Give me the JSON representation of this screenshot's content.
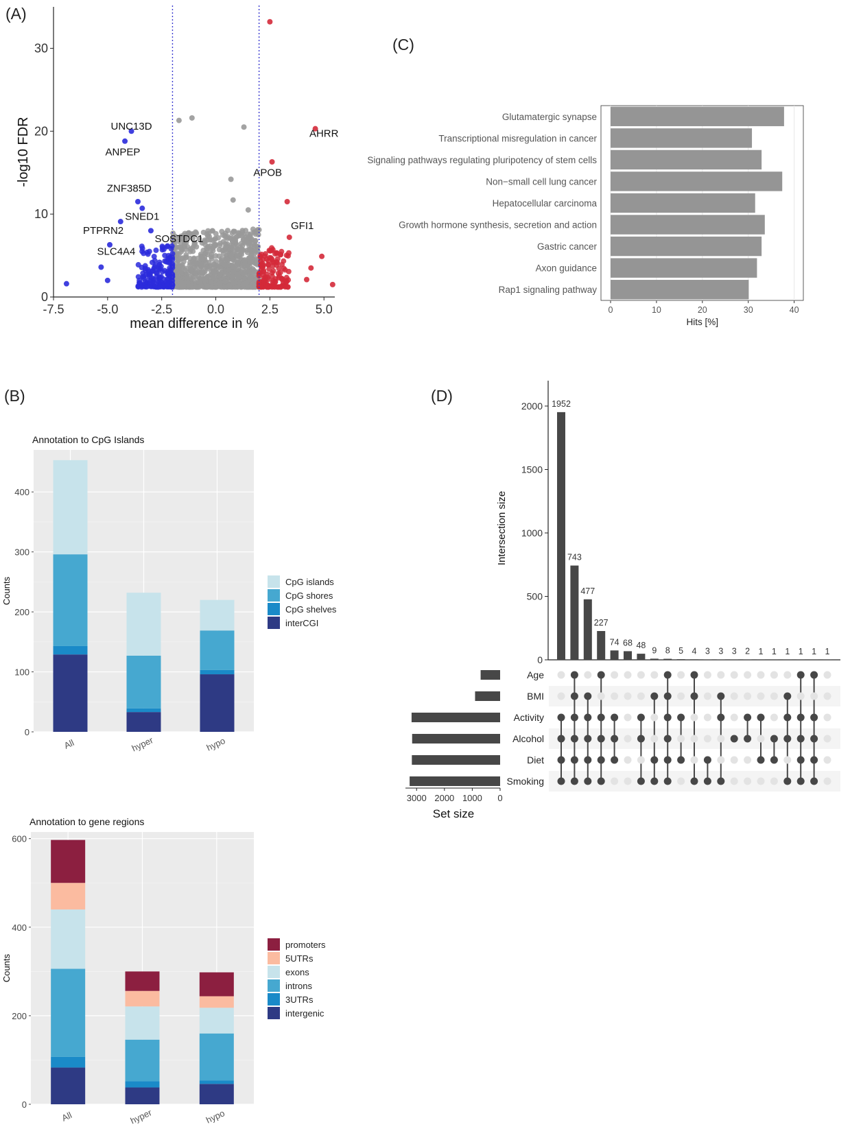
{
  "panels": {
    "A": "(A)",
    "B": "(B)",
    "C": "(C)",
    "D": "(D)"
  },
  "colors": {
    "hypo": "#2b2bdc",
    "hyper": "#d42a3a",
    "ns": "#999999",
    "threshold": "#3a3ad0",
    "bar_c": "#959595",
    "dark": "#474747",
    "panel_bg": "#ebebeb",
    "cpg_islands": "#c7e3eb",
    "cpg_shores": "#46a8d0",
    "cpg_shelves": "#1a8ac8",
    "intercgi": "#2e3a84",
    "promoters": "#8c1f40",
    "utr5": "#fbbba0",
    "exons": "#c7e3eb",
    "introns": "#46a8d0",
    "utr3": "#1a8ac8",
    "intergenic": "#2e3a84"
  },
  "chart_data": [
    {
      "id": "A",
      "type": "scatter",
      "title": "",
      "xlabel": "mean difference in %",
      "ylabel": "-log10  FDR",
      "xlim": [
        -7.5,
        5.5
      ],
      "ylim": [
        0,
        35
      ],
      "xticks": [
        "-7.5",
        "-5.0",
        "-2.5",
        "0.0",
        "2.5",
        "5.0"
      ],
      "xtick_values": [
        -7.5,
        -5.0,
        -2.5,
        0.0,
        2.5,
        5.0
      ],
      "yticks": [
        "0",
        "10",
        "20",
        "30"
      ],
      "ytick_values": [
        0,
        10,
        20,
        30
      ],
      "thresholds": [
        -2,
        2
      ],
      "labels": [
        {
          "text": "UNC13D",
          "x": -3.9,
          "y": 20.2
        },
        {
          "text": "ANPEP",
          "x": -4.3,
          "y": 17.1
        },
        {
          "text": "AHRR",
          "x": 5.0,
          "y": 19.3
        },
        {
          "text": "APOB",
          "x": 2.4,
          "y": 14.6
        },
        {
          "text": "ZNF385D",
          "x": -4.0,
          "y": 12.7
        },
        {
          "text": "SNED1",
          "x": -3.4,
          "y": 9.3
        },
        {
          "text": "GFI1",
          "x": 4.0,
          "y": 8.2
        },
        {
          "text": "PTPRN2",
          "x": -5.2,
          "y": 7.6
        },
        {
          "text": "SOSTDC1",
          "x": -1.7,
          "y": 6.6
        },
        {
          "text": "SLC4A4",
          "x": -4.6,
          "y": 5.1
        }
      ],
      "highlight_points": [
        {
          "x": 2.5,
          "y": 33.2,
          "g": "hyper"
        },
        {
          "x": 4.6,
          "y": 20.3,
          "g": "hyper"
        },
        {
          "x": 2.6,
          "y": 16.3,
          "g": "hyper"
        },
        {
          "x": 3.3,
          "y": 11.5,
          "g": "hyper"
        },
        {
          "x": 3.4,
          "y": 7.2,
          "g": "hyper"
        },
        {
          "x": 4.9,
          "y": 4.9,
          "g": "hyper"
        },
        {
          "x": 5.4,
          "y": 1.5,
          "g": "hyper"
        },
        {
          "x": 4.4,
          "y": 3.5,
          "g": "hyper"
        },
        {
          "x": 4.2,
          "y": 2.1,
          "g": "hyper"
        },
        {
          "x": -3.9,
          "y": 20.0,
          "g": "hypo"
        },
        {
          "x": -4.2,
          "y": 18.8,
          "g": "hypo"
        },
        {
          "x": -3.6,
          "y": 11.5,
          "g": "hypo"
        },
        {
          "x": -3.4,
          "y": 10.7,
          "g": "hypo"
        },
        {
          "x": -4.4,
          "y": 9.1,
          "g": "hypo"
        },
        {
          "x": -3.0,
          "y": 8.0,
          "g": "hypo"
        },
        {
          "x": -4.9,
          "y": 6.3,
          "g": "hypo"
        },
        {
          "x": -5.3,
          "y": 3.6,
          "g": "hypo"
        },
        {
          "x": -6.9,
          "y": 1.6,
          "g": "hypo"
        },
        {
          "x": -5.0,
          "y": 2.0,
          "g": "hypo"
        },
        {
          "x": -1.7,
          "y": 21.3,
          "g": "ns"
        },
        {
          "x": -1.1,
          "y": 21.6,
          "g": "ns"
        },
        {
          "x": 1.3,
          "y": 20.5,
          "g": "ns"
        },
        {
          "x": 0.7,
          "y": 14.2,
          "g": "ns"
        },
        {
          "x": 1.5,
          "y": 10.5,
          "g": "ns"
        },
        {
          "x": 0.8,
          "y": 11.7,
          "g": "ns"
        }
      ]
    },
    {
      "id": "C",
      "type": "bar",
      "orientation": "horizontal",
      "title": "",
      "xlabel": "Hits [%]",
      "ylabel": "",
      "xlim": [
        0,
        42
      ],
      "xticks": [
        "0",
        "10",
        "20",
        "30",
        "40"
      ],
      "xtick_values": [
        0,
        10,
        20,
        30,
        40
      ],
      "categories": [
        "Glutamatergic synapse",
        "Transcriptional misregulation in cancer",
        "Signaling pathways regulating pluripotency of stem cells",
        "Non−small cell lung cancer",
        "Hepatocellular carcinoma",
        "Growth hormone synthesis, secretion and action",
        "Gastric cancer",
        "Axon guidance",
        "Rap1 signaling pathway"
      ],
      "values": [
        37.8,
        30.8,
        32.9,
        37.4,
        31.5,
        33.6,
        32.9,
        31.9,
        30.1
      ]
    },
    {
      "id": "B1",
      "type": "bar",
      "stacked": true,
      "title": "Annotation to CpG Islands",
      "xlabel": "",
      "ylabel": "Counts",
      "ylim": [
        0,
        470
      ],
      "yticks": [
        "0",
        "100",
        "200",
        "300",
        "400"
      ],
      "ytick_values": [
        0,
        100,
        200,
        300,
        400
      ],
      "categories": [
        "All",
        "hyper",
        "hypo"
      ],
      "series": [
        {
          "name": "interCGI",
          "values": [
            129,
            33,
            96
          ]
        },
        {
          "name": "CpG shelves",
          "values": [
            14,
            6,
            7
          ]
        },
        {
          "name": "CpG shores",
          "values": [
            153,
            88,
            66
          ]
        },
        {
          "name": "CpG islands",
          "values": [
            157,
            105,
            51
          ]
        }
      ],
      "legend": [
        "CpG islands",
        "CpG shores",
        "CpG shelves",
        "interCGI"
      ],
      "legend_placement": "right"
    },
    {
      "id": "B2",
      "type": "bar",
      "stacked": true,
      "title": "Annotation to gene regions",
      "xlabel": "",
      "ylabel": "Counts",
      "ylim": [
        0,
        615
      ],
      "yticks": [
        "0",
        "200",
        "400",
        "600"
      ],
      "ytick_values": [
        0,
        200,
        400,
        600
      ],
      "categories": [
        "All",
        "hyper",
        "hypo"
      ],
      "series": [
        {
          "name": "intergenic",
          "values": [
            83,
            38,
            46
          ]
        },
        {
          "name": "3UTRs",
          "values": [
            24,
            14,
            8
          ]
        },
        {
          "name": "introns",
          "values": [
            199,
            94,
            106
          ]
        },
        {
          "name": "exons",
          "values": [
            134,
            75,
            58
          ]
        },
        {
          "name": "5UTRs",
          "values": [
            60,
            35,
            26
          ]
        },
        {
          "name": "promoters",
          "values": [
            97,
            44,
            54
          ]
        }
      ],
      "legend": [
        "promoters",
        "5UTRs",
        "exons",
        "introns",
        "3UTRs",
        "intergenic"
      ],
      "legend_placement": "right"
    },
    {
      "id": "D",
      "type": "bar",
      "title": "",
      "subtype": "upset",
      "ylabel": "Intersection size",
      "ylim": [
        0,
        2200
      ],
      "yticks": [
        "0",
        "500",
        "1000",
        "1500",
        "2000"
      ],
      "ytick_values": [
        0,
        500,
        1000,
        1500,
        2000
      ],
      "values": [
        1952,
        743,
        477,
        227,
        74,
        68,
        48,
        9,
        8,
        5,
        4,
        3,
        3,
        3,
        2,
        1,
        1,
        1,
        1,
        1,
        1
      ],
      "value_labels": [
        "1952",
        "743",
        "477",
        "227",
        "74",
        "68",
        "48",
        "9",
        "8",
        "5",
        "4",
        "3",
        "3",
        "3",
        "2",
        "1",
        "1",
        "1",
        "1",
        "1",
        "1"
      ],
      "sets": [
        "Age",
        "BMI",
        "Activity",
        "Alcohol",
        "Diet",
        "Smoking"
      ],
      "set_sizes": [
        700,
        900,
        3180,
        3160,
        3170,
        3250
      ],
      "set_size_label": "Set size",
      "set_size_ticks": [
        "3000",
        "2000",
        "1000",
        "0"
      ],
      "set_size_tick_values": [
        3000,
        2000,
        1000,
        0
      ],
      "set_size_max": 3400,
      "membership": [
        [
          0,
          0,
          1,
          1,
          1,
          1
        ],
        [
          1,
          1,
          1,
          1,
          1,
          1
        ],
        [
          0,
          1,
          1,
          1,
          1,
          1
        ],
        [
          1,
          0,
          1,
          1,
          1,
          1
        ],
        [
          0,
          0,
          1,
          1,
          1,
          0
        ],
        [
          0,
          0,
          0,
          0,
          0,
          0
        ],
        [
          0,
          0,
          1,
          1,
          0,
          1
        ],
        [
          0,
          1,
          0,
          0,
          1,
          1
        ],
        [
          1,
          1,
          1,
          1,
          1,
          1
        ],
        [
          0,
          0,
          1,
          0,
          1,
          0
        ],
        [
          1,
          1,
          0,
          0,
          0,
          1
        ],
        [
          0,
          0,
          0,
          0,
          1,
          1
        ],
        [
          0,
          1,
          1,
          0,
          0,
          1
        ],
        [
          0,
          0,
          0,
          1,
          0,
          0
        ],
        [
          0,
          0,
          1,
          1,
          0,
          0
        ],
        [
          0,
          0,
          1,
          0,
          1,
          0
        ],
        [
          0,
          0,
          0,
          1,
          1,
          0
        ],
        [
          0,
          1,
          1,
          1,
          0,
          1
        ],
        [
          1,
          0,
          1,
          1,
          1,
          1
        ],
        [
          1,
          0,
          1,
          1,
          1,
          1
        ],
        [
          0,
          0,
          0,
          0,
          0,
          0
        ]
      ]
    }
  ]
}
